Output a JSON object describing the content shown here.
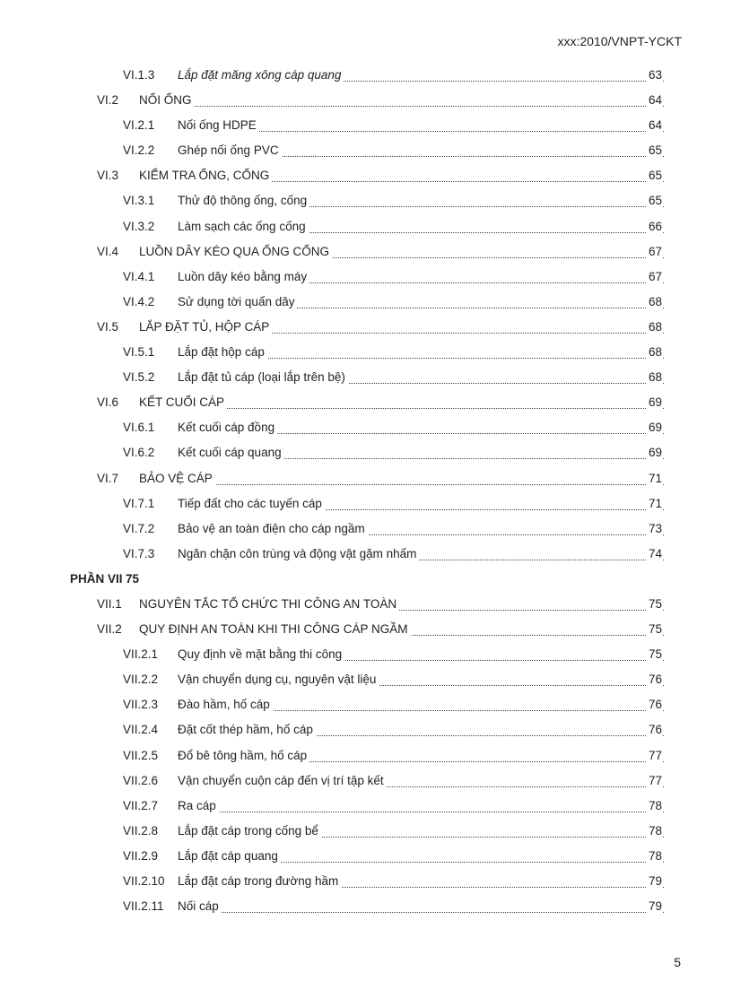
{
  "header": "xxx:2010/VNPT-YCKT",
  "page_number": "5",
  "toc": [
    {
      "level": 3,
      "num": "VI.1.3",
      "title": "Lắp đặt măng xông cáp quang",
      "page": "63",
      "italic": true
    },
    {
      "level": 2,
      "num": "VI.2",
      "title": "NỐI ỐNG",
      "page": "64"
    },
    {
      "level": 3,
      "num": "VI.2.1",
      "title": "Nối ống HDPE",
      "page": "64"
    },
    {
      "level": 3,
      "num": "VI.2.2",
      "title": "Ghép nối ống PVC",
      "page": "65"
    },
    {
      "level": 2,
      "num": "VI.3",
      "title": "KIỂM TRA ỐNG, CỐNG",
      "page": "65"
    },
    {
      "level": 3,
      "num": "VI.3.1",
      "title": "Thử độ thông ống, cống",
      "page": "65"
    },
    {
      "level": 3,
      "num": "VI.3.2",
      "title": "Làm sạch các ống cống",
      "page": "66"
    },
    {
      "level": 2,
      "num": "VI.4",
      "title": "LUỒN DÂY KÉO QUA ỐNG CỐNG",
      "page": "67"
    },
    {
      "level": 3,
      "num": "VI.4.1",
      "title": "Luồn dây kéo bằng máy",
      "page": "67"
    },
    {
      "level": 3,
      "num": "VI.4.2",
      "title": "Sử dụng tời quấn dây",
      "page": "68"
    },
    {
      "level": 2,
      "num": "VI.5",
      "title": "LẮP ĐẶT TỦ, HỘP CÁP",
      "page": "68"
    },
    {
      "level": 3,
      "num": "VI.5.1",
      "title": "Lắp đặt hộp cáp",
      "page": "68"
    },
    {
      "level": 3,
      "num": "VI.5.2",
      "title": "Lắp đặt tủ cáp (loại lắp trên bệ)",
      "page": "68"
    },
    {
      "level": 2,
      "num": "VI.6",
      "title": "KẾT CUỐI CÁP",
      "page": "69"
    },
    {
      "level": 3,
      "num": "VI.6.1",
      "title": "Kết cuối cáp đồng",
      "page": "69"
    },
    {
      "level": 3,
      "num": "VI.6.2",
      "title": "Kết cuối cáp quang",
      "page": "69"
    },
    {
      "level": 2,
      "num": "VI.7",
      "title": "BẢO VỆ CÁP",
      "page": "71"
    },
    {
      "level": 3,
      "num": "VI.7.1",
      "title": "Tiếp đất cho các tuyến cáp",
      "page": "71"
    },
    {
      "level": 3,
      "num": "VI.7.2",
      "title": "Bảo vệ an toàn điện cho cáp ngầm",
      "page": "73"
    },
    {
      "level": 3,
      "num": "VI.7.3",
      "title": "Ngăn chặn côn trùng và động vật gặm nhấm",
      "page": "74"
    },
    {
      "level": 1,
      "num": "PHẦN VII",
      "title": "",
      "page": "75"
    },
    {
      "level": 2,
      "num": "VII.1",
      "title": "NGUYÊN TẮC TỔ CHỨC THI CÔNG AN TOÀN",
      "page": "75"
    },
    {
      "level": 2,
      "num": "VII.2",
      "title": "QUY ĐỊNH AN TOÀN KHI THI CÔNG CÁP NGẦM",
      "page": "75"
    },
    {
      "level": 3,
      "num": "VII.2.1",
      "title": "Quy định về mặt bằng thi công",
      "page": "75"
    },
    {
      "level": 3,
      "num": "VII.2.2",
      "title": "Vận chuyển dụng cụ, nguyên vật liệu",
      "page": "76"
    },
    {
      "level": 3,
      "num": "VII.2.3",
      "title": "Đào hầm, hố cáp",
      "page": "76"
    },
    {
      "level": 3,
      "num": "VII.2.4",
      "title": "Đặt cốt thép hầm, hố cáp",
      "page": "76"
    },
    {
      "level": 3,
      "num": "VII.2.5",
      "title": "Đổ bê tông hầm, hố cáp",
      "page": "77"
    },
    {
      "level": 3,
      "num": "VII.2.6",
      "title": "Vận chuyển cuộn cáp đến vị trí tập kết",
      "page": "77"
    },
    {
      "level": 3,
      "num": "VII.2.7",
      "title": "Ra cáp",
      "page": "78"
    },
    {
      "level": 3,
      "num": "VII.2.8",
      "title": "Lắp đặt cáp trong cống bể",
      "page": "78"
    },
    {
      "level": 3,
      "num": "VII.2.9",
      "title": "Lắp đặt cáp quang",
      "page": "78"
    },
    {
      "level": 3,
      "num": "VII.2.10",
      "title": "Lắp đặt cáp trong đường hầm",
      "page": "79"
    },
    {
      "level": 3,
      "num": "VII.2.11",
      "title": "Nối cáp",
      "page": "79"
    }
  ]
}
